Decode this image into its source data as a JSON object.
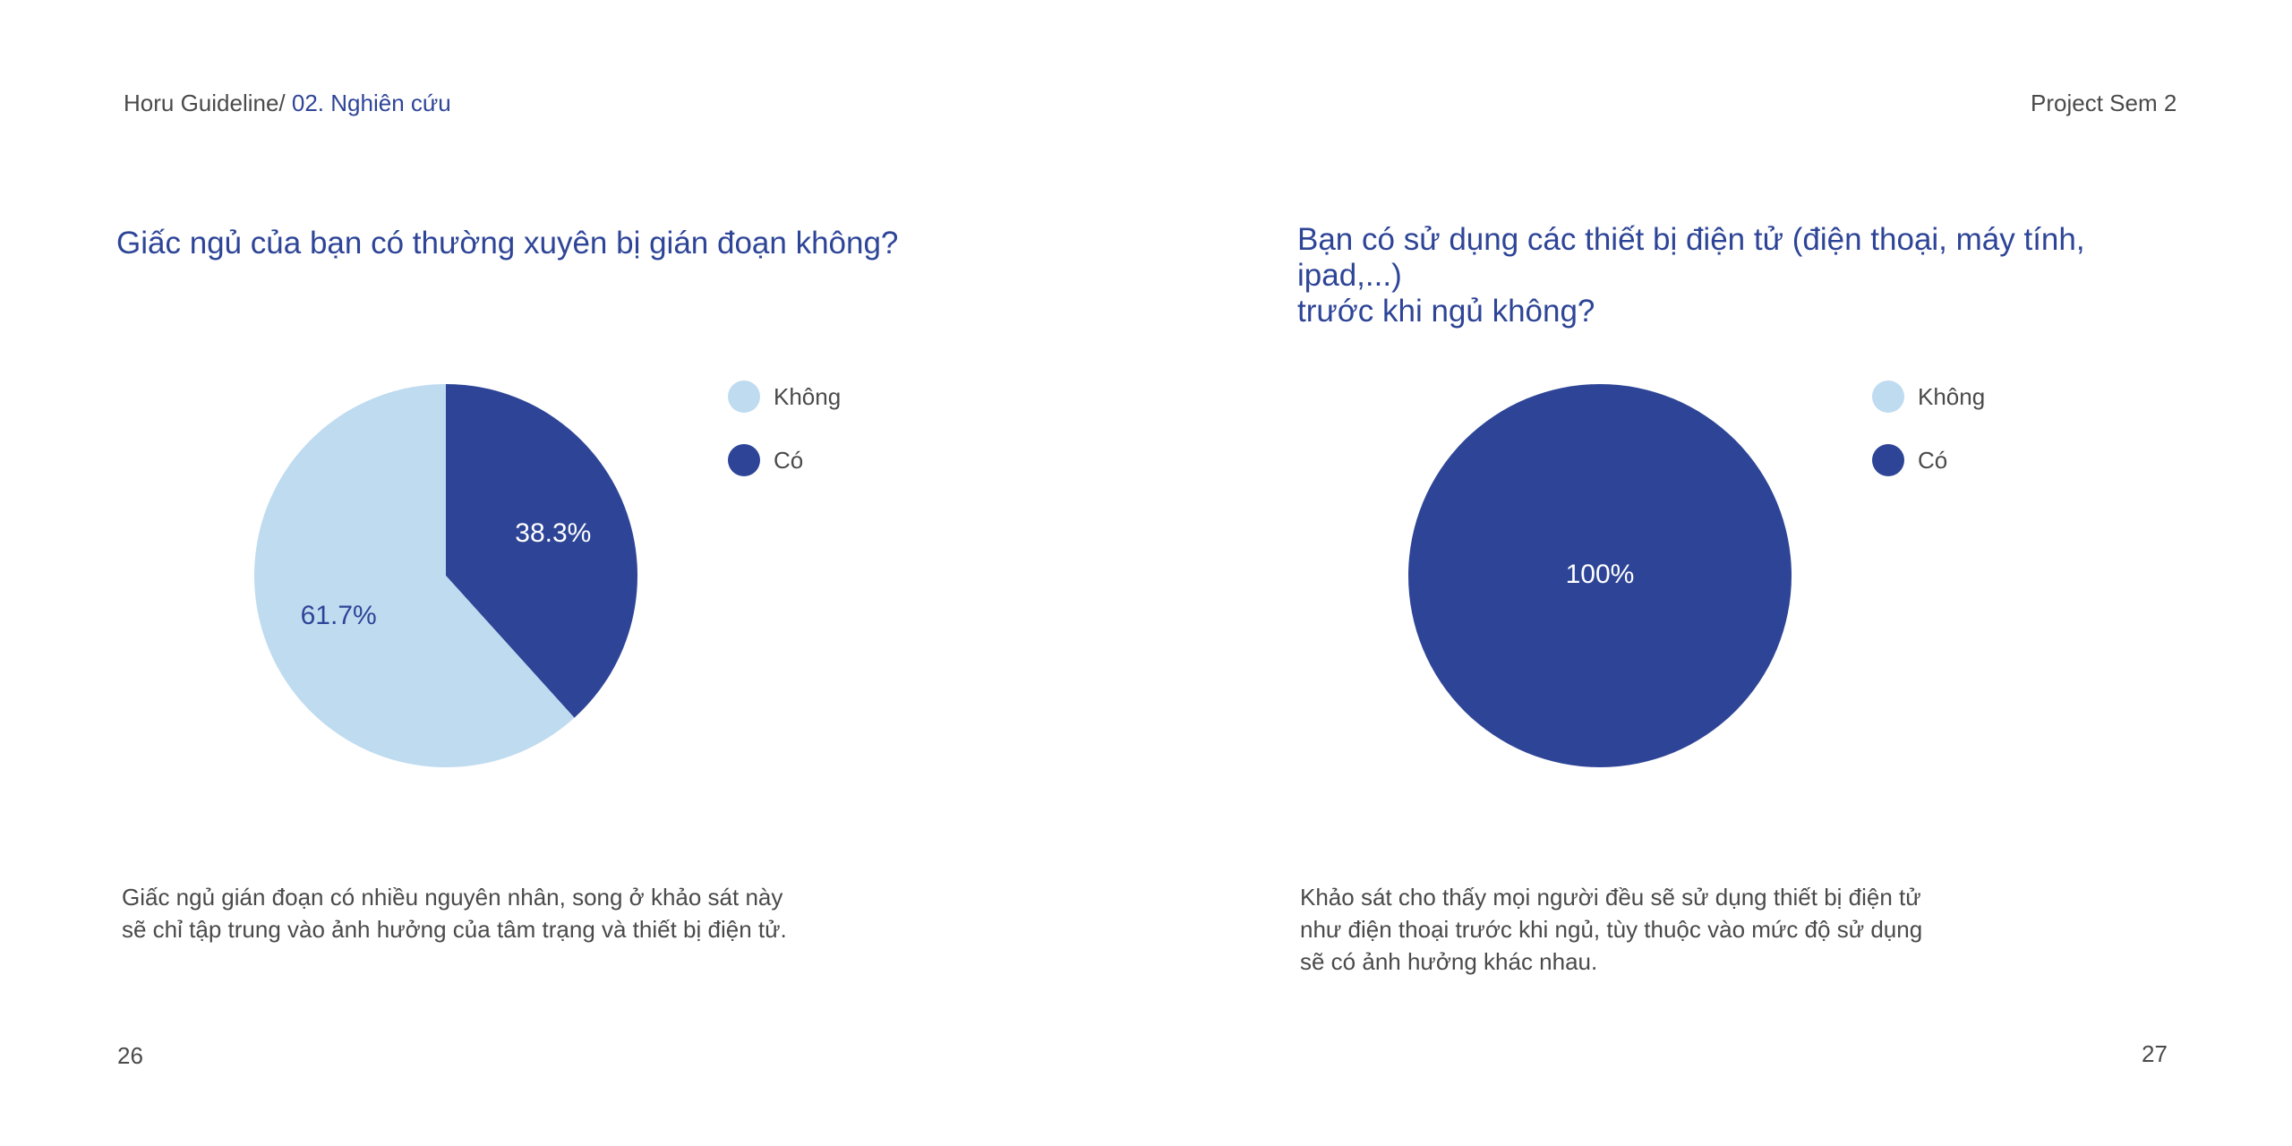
{
  "header": {
    "breadcrumb_root": "Horu Guideline/ ",
    "breadcrumb_current": "02. Nghiên cứu",
    "project": "Project Sem 2"
  },
  "colors": {
    "light": "#bfdbf0",
    "dark": "#2e4597",
    "title": "#2e4597",
    "text": "#4a4a4a"
  },
  "left_page": {
    "question": "Giấc ngủ của bạn có thường xuyên bị gián đoạn không?",
    "description_lines": [
      "Giấc ngủ gián đoạn có nhiều nguyên nhân, song ở khảo sát này",
      "sẽ chỉ tập trung vào ảnh hưởng của tâm trạng và thiết bị điện tử."
    ],
    "page_number": "26"
  },
  "right_page": {
    "question_lines": [
      "Bạn có sử dụng các thiết bị điện tử (điện thoại, máy tính, ipad,...)",
      "trước khi ngủ không?"
    ],
    "description_lines": [
      "Khảo sát cho thấy mọi người đều sẽ sử dụng thiết bị điện tử",
      "như điện thoại trước khi ngủ, tùy thuộc vào mức độ sử dụng",
      "sẽ có ảnh hưởng khác nhau."
    ],
    "page_number": "27"
  },
  "chart_data": [
    {
      "type": "pie",
      "title": "Giấc ngủ của bạn có thường xuyên bị gián đoạn không?",
      "categories": [
        "Không",
        "Có"
      ],
      "values": [
        61.7,
        38.3
      ],
      "labels": [
        "61.7%",
        "38.3%"
      ],
      "colors": [
        "#bfdbf0",
        "#2e4597"
      ],
      "label_colors": [
        "#2e4597",
        "#ffffff"
      ],
      "legend": "right"
    },
    {
      "type": "pie",
      "title": "Bạn có sử dụng các thiết bị điện tử (điện thoại, máy tính, ipad,...) trước khi ngủ không?",
      "categories": [
        "Không",
        "Có"
      ],
      "values": [
        0,
        100
      ],
      "labels": [
        "",
        "100%"
      ],
      "colors": [
        "#bfdbf0",
        "#2e4597"
      ],
      "label_colors": [
        "#2e4597",
        "#ffffff"
      ],
      "legend": "right"
    }
  ]
}
